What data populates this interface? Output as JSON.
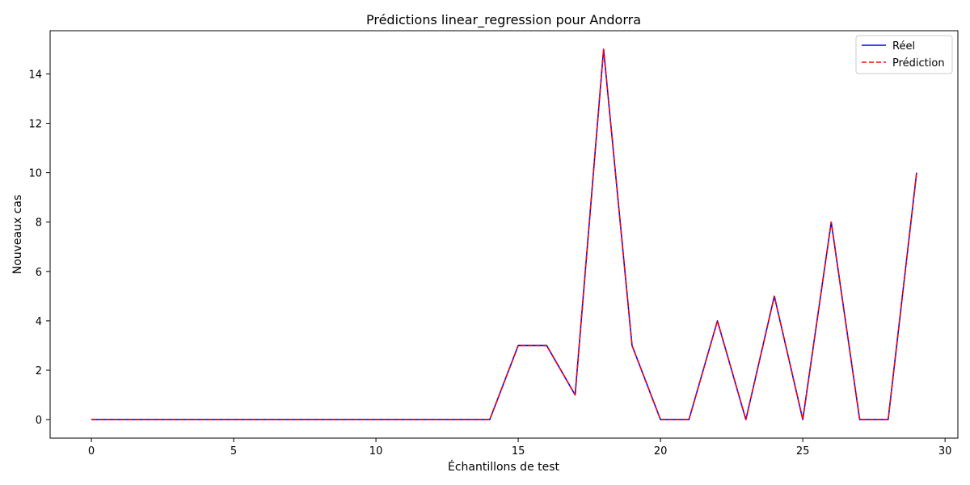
{
  "chart_data": {
    "type": "line",
    "title": "Prédictions linear_regression pour Andorra",
    "xlabel": "Échantillons de test",
    "ylabel": "Nouveaux cas",
    "xlim": [
      -1.45,
      30.45
    ],
    "ylim": [
      -0.75,
      15.75
    ],
    "xticks": [
      0,
      5,
      10,
      15,
      20,
      25,
      30
    ],
    "yticks": [
      0,
      2,
      4,
      6,
      8,
      10,
      12,
      14
    ],
    "grid": false,
    "legend_position": "top-right",
    "x": [
      0,
      1,
      2,
      3,
      4,
      5,
      6,
      7,
      8,
      9,
      10,
      11,
      12,
      13,
      14,
      15,
      16,
      17,
      18,
      19,
      20,
      21,
      22,
      23,
      24,
      25,
      26,
      27,
      28,
      29
    ],
    "series": [
      {
        "name": "Réel",
        "color": "#0000ff",
        "style": "solid",
        "values": [
          0,
          0,
          0,
          0,
          0,
          0,
          0,
          0,
          0,
          0,
          0,
          0,
          0,
          0,
          0,
          3,
          3,
          1,
          15,
          3,
          0,
          0,
          4,
          0,
          5,
          0,
          8,
          0,
          0,
          10
        ]
      },
      {
        "name": "Prédiction",
        "color": "#ff0000",
        "style": "dashed",
        "values": [
          0,
          0,
          0,
          0,
          0,
          0,
          0,
          0,
          0,
          0,
          0,
          0,
          0,
          0,
          0,
          3,
          3,
          1,
          15,
          3,
          0,
          0,
          4,
          0,
          5,
          0,
          8,
          0,
          0,
          10
        ]
      }
    ]
  }
}
